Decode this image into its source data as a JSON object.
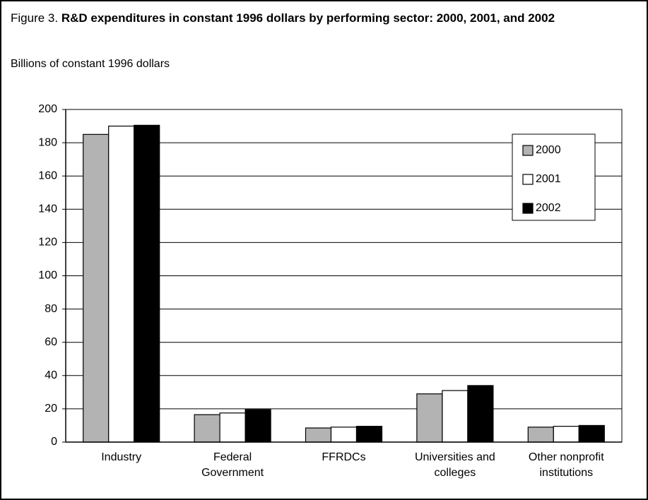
{
  "chart_data": {
    "type": "bar",
    "figure_label": "Figure 3.",
    "title": "R&D expenditures in constant 1996 dollars by performing sector: 2000, 2001, and 2002",
    "y_axis_label": "Billions of constant 1996 dollars",
    "categories": [
      "Industry",
      "Federal Government",
      "FFRDCs",
      "Universities and colleges",
      "Other nonprofit institutions"
    ],
    "series": [
      {
        "name": "2000",
        "color": "#b3b3b3",
        "values": [
          185,
          16.5,
          8.5,
          29,
          9
        ]
      },
      {
        "name": "2001",
        "color": "#ffffff",
        "values": [
          190,
          17.5,
          9,
          31,
          9.5
        ]
      },
      {
        "name": "2002",
        "color": "#000000",
        "values": [
          190.5,
          19.5,
          9.5,
          34,
          10
        ]
      }
    ],
    "ylim": [
      0,
      200
    ],
    "yticks": [
      0,
      20,
      40,
      60,
      80,
      100,
      120,
      140,
      160,
      180,
      200
    ],
    "grid": true,
    "legend": "upper right"
  }
}
